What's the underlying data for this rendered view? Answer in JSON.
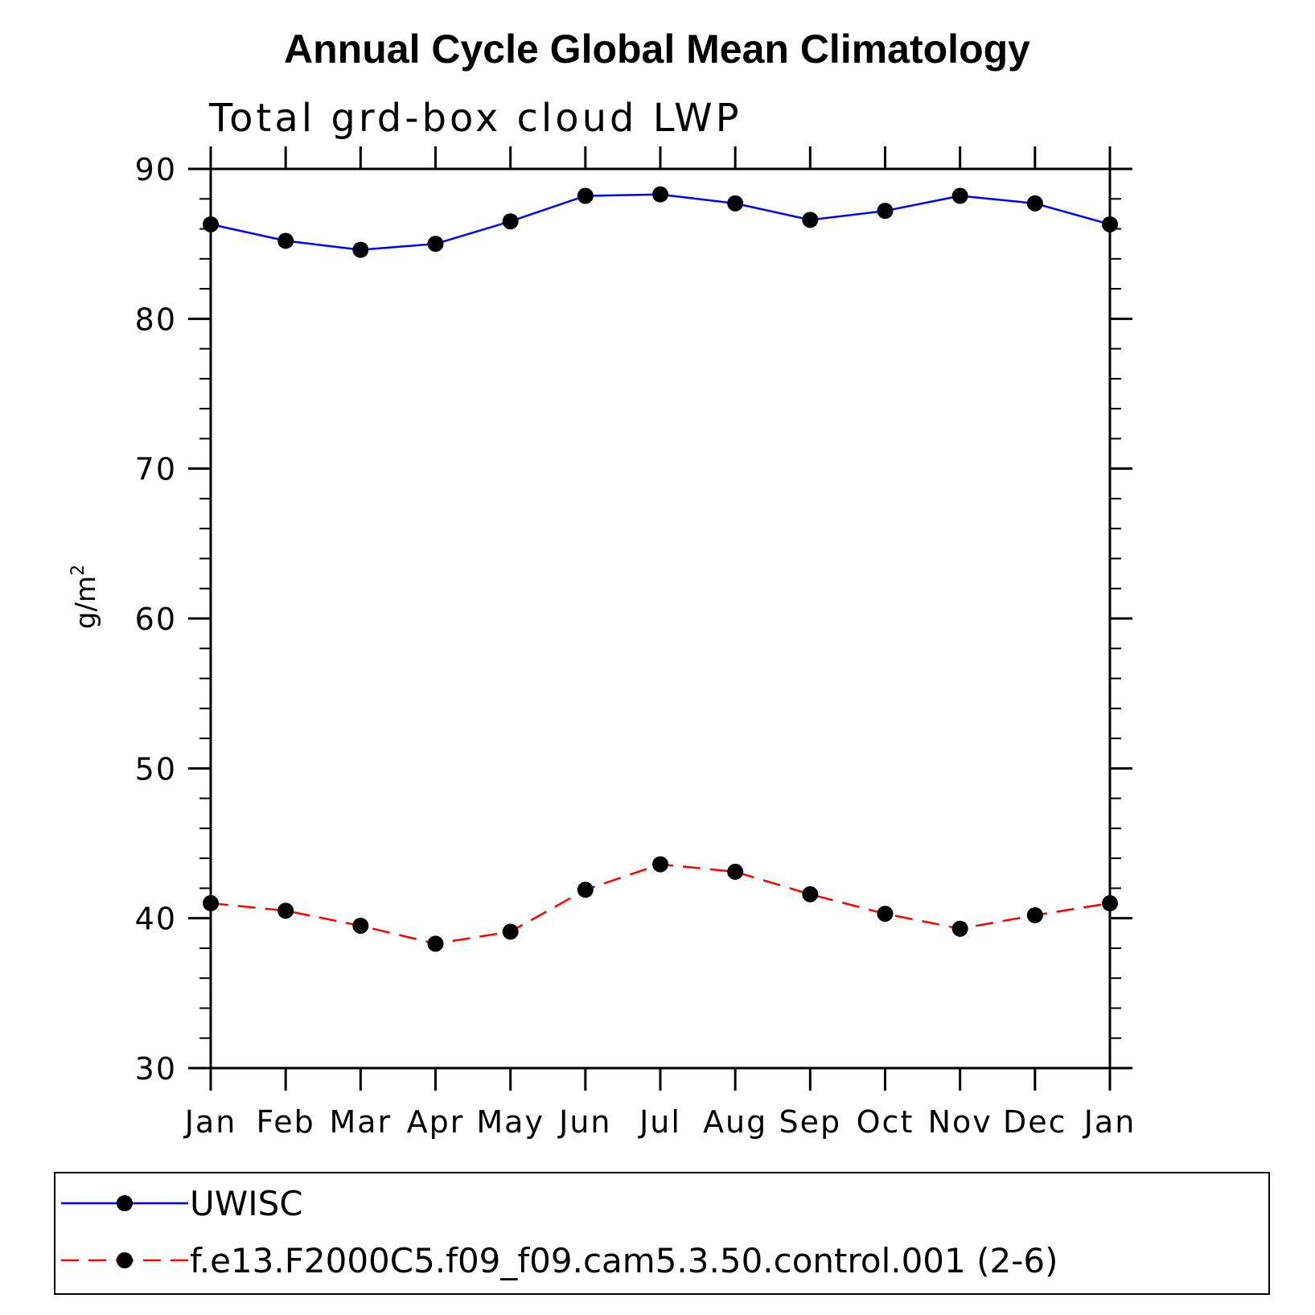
{
  "chart_data": {
    "type": "line",
    "title": "Annual Cycle Global Mean Climatology",
    "subtitle": "Total grd-box cloud LWP",
    "ylabel_base": "g/m",
    "ylabel_sup": "2",
    "ylim": [
      30,
      90
    ],
    "yticks": [
      30,
      40,
      50,
      60,
      70,
      80,
      90
    ],
    "yminor_step": 2,
    "categories": [
      "Jan",
      "Feb",
      "Mar",
      "Apr",
      "May",
      "Jun",
      "Jul",
      "Aug",
      "Sep",
      "Oct",
      "Nov",
      "Dec",
      "Jan"
    ],
    "series": [
      {
        "name": "UWISC",
        "color": "#0000ff",
        "dash": "solid",
        "marker": "filled-circle",
        "values": [
          86.3,
          85.2,
          84.6,
          85.0,
          86.5,
          88.2,
          88.3,
          87.7,
          86.6,
          87.2,
          88.2,
          87.7,
          86.3
        ]
      },
      {
        "name": "f.e13.F2000C5.f09_f09.cam5.3.50.control.001 (2-6)",
        "color": "#ff0000",
        "dash": "dashed",
        "marker": "filled-circle",
        "values": [
          41.0,
          40.5,
          39.5,
          38.3,
          39.1,
          41.9,
          43.6,
          43.1,
          41.6,
          40.3,
          39.3,
          40.2,
          41.0
        ]
      }
    ],
    "grid": false,
    "legend_position": "bottom"
  }
}
